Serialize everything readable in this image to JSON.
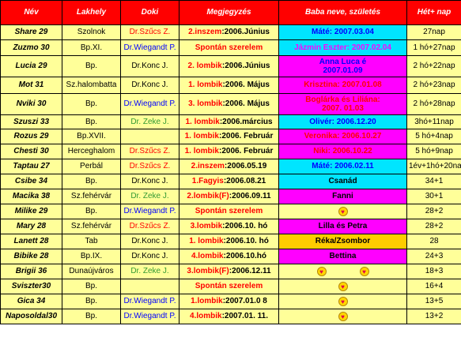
{
  "headers": [
    "Név",
    "Lakhely",
    "Doki",
    "Megjegyzés",
    "Baba neve, születés",
    "Hét+ nap"
  ],
  "colors": {
    "header_bg": "#ff0000",
    "row_bg": "#ffff99",
    "cyan": "#00e5ff",
    "magenta": "#ff00ff",
    "orange": "#ffcc00"
  },
  "rows": [
    {
      "name": "Share 29",
      "place": "Szolnok",
      "doctor": "Dr.Szűcs Z.",
      "doc_color": "red",
      "note_type": "2.inszem",
      "note_type_color": "red",
      "note_date": ":2006.Június",
      "baby": "Máté: 2007.03.04",
      "baby_bg": "#00e5ff",
      "baby_color": "blue",
      "week": "27nap"
    },
    {
      "name": "Zuzmo 30",
      "place": "Bp.XI.",
      "doctor": "Dr.Wiegandt P.",
      "doc_color": "blue",
      "note_type": "Spontán szerelem",
      "note_type_color": "red",
      "note_date": "",
      "baby": "Jázmin Eszter: 2007.02.04",
      "baby_bg": "#00e5ff",
      "baby_color": "magenta",
      "week": "1 hó+27nap"
    },
    {
      "name": "Lucia 29",
      "place": "Bp.",
      "doctor": "Dr.Konc J.",
      "doc_color": "black",
      "note_type": "2. lombik",
      "note_type_color": "red",
      "note_date": ":2006.Június",
      "baby_line1": "Anna Luca é",
      "baby_line2": "2007.01.09",
      "baby_bg": "#ff00ff",
      "baby_color": "blue",
      "week": "2 hó+22nap"
    },
    {
      "name": "Mot 31",
      "place": "Sz.halombatta",
      "doctor": "Dr.Konc J.",
      "doc_color": "black",
      "note_type": "1. lombik",
      "note_type_color": "red",
      "note_date": ":2006. Május",
      "baby": "Krisztina: 2007.01.08",
      "baby_bg": "#ff00ff",
      "baby_color": "red",
      "week": "2 hó+23nap"
    },
    {
      "name": "Nviki 30",
      "place": "Bp.",
      "doctor": "Dr.Wiegandt P.",
      "doc_color": "blue",
      "note_type": "3. lombik",
      "note_type_color": "red",
      "note_date": ":2006. Május",
      "baby_line1": "Boglárka és Liliána:",
      "baby_line2": "2007. 01.03",
      "baby_bg": "#ff00ff",
      "baby_color": "red",
      "week": "2 hó+28nap"
    },
    {
      "name": "Szuszi 33",
      "place": "Bp.",
      "doctor": "Dr. Zeke J.",
      "doc_color": "green",
      "note_type": "1. lombik",
      "note_type_color": "red",
      "note_date": ":2006.március",
      "baby": "Olivér: 2006.12.20",
      "baby_bg": "#00e5ff",
      "baby_color": "blue",
      "week": "3hó+11nap"
    },
    {
      "name": "Rozus 29",
      "place": "Bp.XVII.",
      "doctor": "",
      "doc_color": "black",
      "note_type": "1. lombik",
      "note_type_color": "red",
      "note_date": ":2006. Február",
      "baby": "Veronika: 2006.10.27",
      "baby_bg": "#ff00ff",
      "baby_color": "red",
      "week": "5 hó+4nap"
    },
    {
      "name": "Chesti 30",
      "place": "Herceghalom",
      "doctor": "Dr.Szűcs Z.",
      "doc_color": "red",
      "note_type": "1. lombik",
      "note_type_color": "red",
      "note_date": ":2006. Február",
      "baby": "Niki: 2006.10.22",
      "baby_bg": "#ff00ff",
      "baby_color": "red",
      "week": "5 hó+9nap"
    },
    {
      "name": "Taptau 27",
      "place": "Perbál",
      "doctor": "Dr.Szűcs Z.",
      "doc_color": "red",
      "note_type": "2.inszem",
      "note_type_color": "red",
      "note_date": ":2006.05.19",
      "baby": "Máté: 2006.02.11",
      "baby_bg": "#00e5ff",
      "baby_color": "blue",
      "week": "1év+1hó+20nap"
    },
    {
      "name": "Csibe 34",
      "place": "Bp.",
      "doctor": "Dr.Konc J.",
      "doc_color": "black",
      "note_type": "1.Fagyis",
      "note_type_color": "red",
      "note_date": ":2006.08.21",
      "baby": "Csanád",
      "baby_bg": "#00e5ff",
      "baby_color": "black",
      "week": "34+1"
    },
    {
      "name": "Macika 38",
      "place": "Sz.fehérvár",
      "doctor": "Dr. Zeke J.",
      "doc_color": "green",
      "note_type": "2.lombik(F)",
      "note_type_color": "red",
      "note_date": ":2006.09.11",
      "baby": "Fanni",
      "baby_bg": "#ff00ff",
      "baby_color": "black",
      "week": "30+1"
    },
    {
      "name": "Milike 29",
      "place": "Bp.",
      "doctor": "Dr.Wiegandt P.",
      "doc_color": "blue",
      "note_type": "Spontán szerelem",
      "note_type_color": "red",
      "note_date": "",
      "hearts": 1,
      "baby_bg": "#ffff99",
      "week": "28+2"
    },
    {
      "name": "Mary 28",
      "place": "Sz.fehérvár",
      "doctor": "Dr.Szűcs Z.",
      "doc_color": "red",
      "note_type": "3.lombik",
      "note_type_color": "red",
      "note_date": ":2006.10. hó",
      "baby": "Lilla és Petra",
      "baby_bg": "#ff00ff",
      "baby_color": "black",
      "week": "28+2"
    },
    {
      "name": "Lanett 28",
      "place": "Tab",
      "doctor": "Dr.Konc J.",
      "doc_color": "black",
      "note_type": "1. lombik",
      "note_type_color": "red",
      "note_date": ":2006.10. hó",
      "baby": "Réka/Zsombor",
      "baby_bg": "#ffcc00",
      "baby_color": "black",
      "week": "28"
    },
    {
      "name": "Bibike 28",
      "place": "Bp.IX.",
      "doctor": "Dr.Konc J.",
      "doc_color": "black",
      "note_type": "4.lombik",
      "note_type_color": "red",
      "note_date": ":2006.10.hó",
      "baby": "Bettina",
      "baby_bg": "#ff00ff",
      "baby_color": "black",
      "week": "24+3"
    },
    {
      "name": "Brigii 36",
      "place": "Dunaújváros",
      "doctor": "Dr. Zeke J.",
      "doc_color": "green",
      "note_type": "3.lombik(F)",
      "note_type_color": "red",
      "note_date": ":2006.12.11",
      "hearts": 2,
      "baby_bg": "#ffff99",
      "week": "18+3"
    },
    {
      "name": "Sviszter30",
      "place": "Bp.",
      "doctor": "",
      "doc_color": "black",
      "note_type": "Spontán szerelem",
      "note_type_color": "red",
      "note_date": "",
      "hearts": 1,
      "baby_bg": "#ffff99",
      "week": "16+4"
    },
    {
      "name": "Gica  34",
      "place": "Bp.",
      "doctor": "Dr.Wiegandt P.",
      "doc_color": "blue",
      "note_type": "1.lombik",
      "note_type_color": "red",
      "note_date": ":2007.01.0 8",
      "hearts": 1,
      "baby_bg": "#ffff99",
      "week": "13+5"
    },
    {
      "name": "Naposoldal30",
      "place": "Bp.",
      "doctor": "Dr.Wiegandt P.",
      "doc_color": "blue",
      "note_type": "4.lombik",
      "note_type_color": "red",
      "note_date": ":2007.01. 11.",
      "hearts": 1,
      "baby_bg": "#ffff99",
      "week": "13+2"
    }
  ]
}
